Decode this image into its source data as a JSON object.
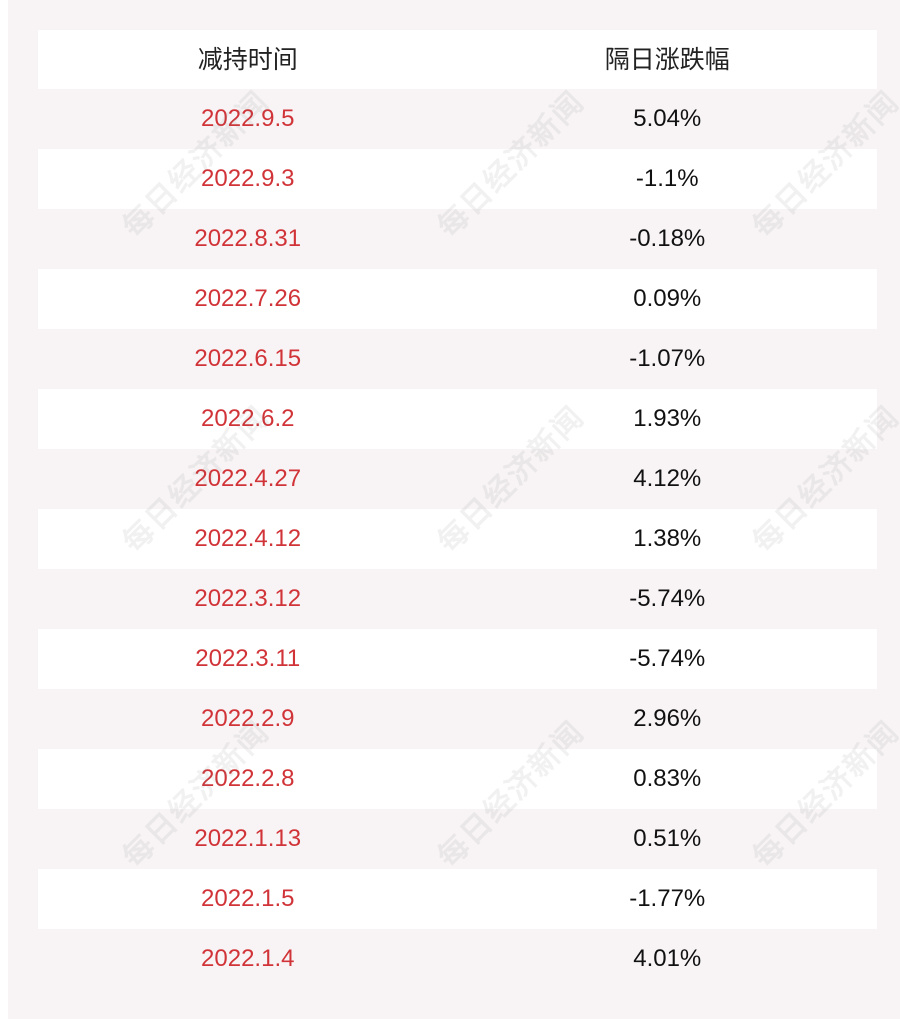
{
  "table": {
    "headers": {
      "date": "减持时间",
      "change": "隔日涨跌幅"
    },
    "rows": [
      {
        "date": "2022.9.5",
        "change": "5.04%"
      },
      {
        "date": "2022.9.3",
        "change": "-1.1%"
      },
      {
        "date": "2022.8.31",
        "change": "-0.18%"
      },
      {
        "date": "2022.7.26",
        "change": "0.09%"
      },
      {
        "date": "2022.6.15",
        "change": "-1.07%"
      },
      {
        "date": "2022.6.2",
        "change": "1.93%"
      },
      {
        "date": "2022.4.27",
        "change": "4.12%"
      },
      {
        "date": "2022.4.12",
        "change": "1.38%"
      },
      {
        "date": "2022.3.12",
        "change": "-5.74%"
      },
      {
        "date": "2022.3.11",
        "change": "-5.74%"
      },
      {
        "date": "2022.2.9",
        "change": "2.96%"
      },
      {
        "date": "2022.2.8",
        "change": "0.83%"
      },
      {
        "date": "2022.1.13",
        "change": "0.51%"
      },
      {
        "date": "2022.1.5",
        "change": "-1.77%"
      },
      {
        "date": "2022.1.4",
        "change": "4.01%"
      }
    ]
  },
  "watermark": "每日经济新闻",
  "colors": {
    "date_text": "#d13438",
    "change_text": "#111111",
    "header_text": "#222222",
    "row_white": "#ffffff",
    "row_tint": "#f8f4f5"
  }
}
